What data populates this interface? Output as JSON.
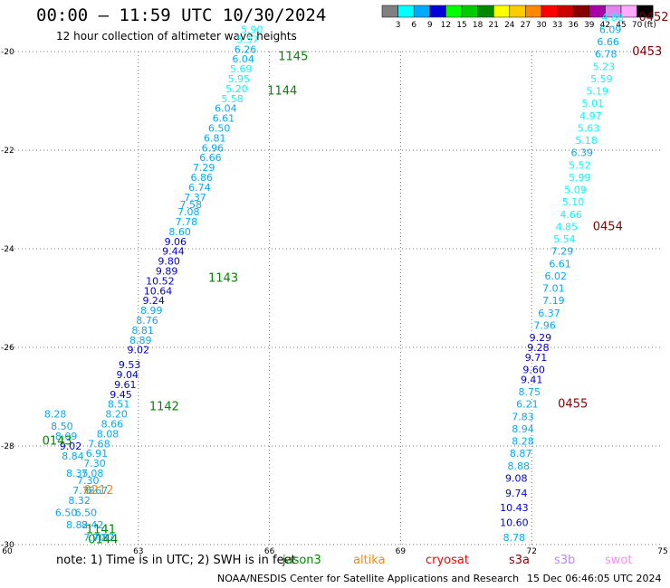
{
  "header": {
    "title": "00:00 — 11:59 UTC 10/30/2024",
    "subtitle": "12 hour collection of altimeter wave heights"
  },
  "legend": {
    "unit": "(ft)",
    "bins": [
      {
        "label": "3",
        "color": "#808080"
      },
      {
        "label": "6",
        "color": "#00ffff"
      },
      {
        "label": "9",
        "color": "#00aaff"
      },
      {
        "label": "12",
        "color": "#0000dd"
      },
      {
        "label": "15",
        "color": "#00ff00"
      },
      {
        "label": "18",
        "color": "#00cc00"
      },
      {
        "label": "21",
        "color": "#008800"
      },
      {
        "label": "24",
        "color": "#ffff00"
      },
      {
        "label": "27",
        "color": "#ffcc00"
      },
      {
        "label": "30",
        "color": "#ff8800"
      },
      {
        "label": "33",
        "color": "#ff0000"
      },
      {
        "label": "36",
        "color": "#cc0000"
      },
      {
        "label": "39",
        "color": "#880000"
      },
      {
        "label": "42",
        "color": "#aa00aa"
      },
      {
        "label": "45",
        "color": "#dd88ee"
      },
      {
        "label": "70",
        "color": "#ffaaff"
      },
      {
        "label": "",
        "color": "#000000"
      }
    ]
  },
  "footer": {
    "note": "note: 1) Time is in UTC; 2) SWH is in feet",
    "satellites": [
      {
        "name": "jason3",
        "color": "#008800"
      },
      {
        "name": "altika",
        "color": "#ff8800"
      },
      {
        "name": "cryosat",
        "color": "#ff0000"
      },
      {
        "name": "s3a",
        "color": "#880000"
      },
      {
        "name": "s3b",
        "color": "#bb88ee"
      },
      {
        "name": "swot",
        "color": "#ff88ff"
      }
    ],
    "credit": "NOAA/NESDIS Center for Satellite Applications and Research",
    "generated": "15 Dec 06:46:05 UTC 2024"
  },
  "chart_data": {
    "type": "scatter",
    "xlim": [
      60,
      75
    ],
    "ylim": [
      -30,
      -20
    ],
    "x_ticks": [
      "60",
      "63",
      "66",
      "69",
      "72",
      "75"
    ],
    "y_ticks": [
      "-20",
      "-22",
      "-24",
      "-26",
      "-28",
      "-30"
    ],
    "grid": true,
    "tracks": [
      {
        "satellite": "jason3",
        "points": [
          {
            "x": 62.0,
            "y": -29.85,
            "v": "7.70"
          },
          {
            "x": 62.2,
            "y": -29.85,
            "v": "7.87"
          },
          {
            "x": 61.95,
            "y": -29.6,
            "v": "8.42"
          },
          {
            "x": 61.6,
            "y": -29.6,
            "v": "8.82"
          },
          {
            "x": 61.35,
            "y": -29.35,
            "v": "6.50"
          },
          {
            "x": 61.8,
            "y": -29.35,
            "v": "6.50"
          },
          {
            "x": 61.65,
            "y": -29.1,
            "v": "8.32"
          },
          {
            "x": 61.75,
            "y": -28.9,
            "v": "7.78"
          },
          {
            "x": 62.05,
            "y": -28.9,
            "v": "6.67"
          },
          {
            "x": 61.85,
            "y": -28.7,
            "v": "7.30"
          },
          {
            "x": 61.6,
            "y": -28.55,
            "v": "8.35"
          },
          {
            "x": 61.95,
            "y": -28.55,
            "v": "7.08"
          },
          {
            "x": 62.0,
            "y": -28.35,
            "v": "7.30"
          },
          {
            "x": 61.5,
            "y": -28.2,
            "v": "8.84"
          },
          {
            "x": 62.05,
            "y": -28.15,
            "v": "6.91"
          },
          {
            "x": 61.45,
            "y": -28.0,
            "v": "9.02"
          },
          {
            "x": 62.1,
            "y": -27.95,
            "v": "7.68"
          },
          {
            "x": 61.35,
            "y": -27.8,
            "v": "8.09"
          },
          {
            "x": 62.3,
            "y": -27.75,
            "v": "8.08"
          },
          {
            "x": 61.25,
            "y": -27.6,
            "v": "8.50"
          },
          {
            "x": 62.4,
            "y": -27.55,
            "v": "8.66"
          },
          {
            "x": 61.1,
            "y": -27.35,
            "v": "8.28"
          },
          {
            "x": 62.5,
            "y": -27.35,
            "v": "8.20"
          },
          {
            "x": 62.55,
            "y": -27.15,
            "v": "8.51"
          },
          {
            "x": 62.6,
            "y": -26.95,
            "v": "9.45"
          },
          {
            "x": 62.7,
            "y": -26.75,
            "v": "9.61"
          },
          {
            "x": 62.75,
            "y": -26.55,
            "v": "9.04"
          },
          {
            "x": 62.8,
            "y": -26.35,
            "v": "9.53"
          },
          {
            "x": 63.0,
            "y": -26.05,
            "v": "9.02"
          },
          {
            "x": 63.05,
            "y": -25.85,
            "v": "8.89"
          },
          {
            "x": 63.1,
            "y": -25.65,
            "v": "8.81"
          },
          {
            "x": 63.2,
            "y": -25.45,
            "v": "8.76"
          },
          {
            "x": 63.3,
            "y": -25.25,
            "v": "8.99"
          },
          {
            "x": 63.35,
            "y": -25.05,
            "v": "9.24"
          },
          {
            "x": 63.45,
            "y": -24.85,
            "v": "10.64"
          },
          {
            "x": 63.5,
            "y": -24.65,
            "v": "10.52"
          },
          {
            "x": 63.65,
            "y": -24.45,
            "v": "9.89"
          },
          {
            "x": 63.7,
            "y": -24.25,
            "v": "9.80"
          },
          {
            "x": 63.8,
            "y": -24.05,
            "v": "9.44"
          },
          {
            "x": 63.85,
            "y": -23.85,
            "v": "9.06"
          },
          {
            "x": 63.95,
            "y": -23.65,
            "v": "8.60"
          },
          {
            "x": 64.1,
            "y": -23.45,
            "v": "7.78"
          },
          {
            "x": 64.15,
            "y": -23.25,
            "v": "7.08"
          },
          {
            "x": 64.2,
            "y": -23.1,
            "v": "7.58"
          },
          {
            "x": 64.3,
            "y": -22.95,
            "v": "7.37"
          },
          {
            "x": 64.4,
            "y": -22.75,
            "v": "6.74"
          },
          {
            "x": 64.45,
            "y": -22.55,
            "v": "6.86"
          },
          {
            "x": 64.5,
            "y": -22.35,
            "v": "7.29"
          },
          {
            "x": 64.65,
            "y": -22.15,
            "v": "6.66"
          },
          {
            "x": 64.7,
            "y": -21.95,
            "v": "6.96"
          },
          {
            "x": 64.75,
            "y": -21.75,
            "v": "6.81"
          },
          {
            "x": 64.85,
            "y": -21.55,
            "v": "6.50"
          },
          {
            "x": 64.95,
            "y": -21.35,
            "v": "6.61"
          },
          {
            "x": 65.0,
            "y": -21.15,
            "v": "6.04"
          },
          {
            "x": 65.15,
            "y": -20.95,
            "v": "5.58"
          },
          {
            "x": 65.25,
            "y": -20.75,
            "v": "5.20"
          },
          {
            "x": 65.3,
            "y": -20.55,
            "v": "5.95"
          },
          {
            "x": 65.35,
            "y": -20.35,
            "v": "5.69"
          },
          {
            "x": 65.4,
            "y": -20.15,
            "v": "6.04"
          },
          {
            "x": 65.45,
            "y": -19.95,
            "v": "6.26"
          },
          {
            "x": 65.5,
            "y": -19.75,
            "v": "5.57"
          },
          {
            "x": 65.6,
            "y": -19.55,
            "v": "5.90"
          }
        ],
        "time_labels": [
          {
            "x": 66.2,
            "y": -20.1,
            "label": "1145"
          },
          {
            "x": 65.95,
            "y": -20.8,
            "label": "1144"
          },
          {
            "x": 64.6,
            "y": -24.6,
            "label": "1143"
          },
          {
            "x": 63.25,
            "y": -27.2,
            "label": "1142"
          },
          {
            "x": 61.8,
            "y": -29.7,
            "label": "1141"
          },
          {
            "x": 61.85,
            "y": -29.9,
            "label": "0144"
          },
          {
            "x": 60.8,
            "y": -27.9,
            "label": "0143"
          }
        ]
      },
      {
        "satellite": "altika",
        "points": [],
        "time_labels": [
          {
            "x": 61.75,
            "y": -28.9,
            "label": "0212"
          }
        ]
      },
      {
        "satellite": "s3a",
        "points": [
          {
            "x": 71.6,
            "y": -29.85,
            "v": "8.78"
          },
          {
            "x": 71.6,
            "y": -29.55,
            "v": "10.60"
          },
          {
            "x": 71.6,
            "y": -29.25,
            "v": "10.43"
          },
          {
            "x": 71.65,
            "y": -28.95,
            "v": "9.74"
          },
          {
            "x": 71.65,
            "y": -28.65,
            "v": "9.08"
          },
          {
            "x": 71.7,
            "y": -28.4,
            "v": "8.88"
          },
          {
            "x": 71.75,
            "y": -28.15,
            "v": "8.87"
          },
          {
            "x": 71.8,
            "y": -27.9,
            "v": "8.28"
          },
          {
            "x": 71.8,
            "y": -27.65,
            "v": "8.94"
          },
          {
            "x": 71.8,
            "y": -27.4,
            "v": "7.83"
          },
          {
            "x": 71.9,
            "y": -27.15,
            "v": "6.21"
          },
          {
            "x": 71.95,
            "y": -26.9,
            "v": "8.75"
          },
          {
            "x": 72.0,
            "y": -26.65,
            "v": "9.41"
          },
          {
            "x": 72.05,
            "y": -26.45,
            "v": "9.60"
          },
          {
            "x": 72.1,
            "y": -26.2,
            "v": "9.71"
          },
          {
            "x": 72.15,
            "y": -26.0,
            "v": "9.28"
          },
          {
            "x": 72.2,
            "y": -25.8,
            "v": "9.29"
          },
          {
            "x": 72.3,
            "y": -25.55,
            "v": "7.96"
          },
          {
            "x": 72.4,
            "y": -25.3,
            "v": "6.37"
          },
          {
            "x": 72.5,
            "y": -25.05,
            "v": "7.19"
          },
          {
            "x": 72.5,
            "y": -24.8,
            "v": "7.01"
          },
          {
            "x": 72.55,
            "y": -24.55,
            "v": "6.02"
          },
          {
            "x": 72.65,
            "y": -24.3,
            "v": "6.61"
          },
          {
            "x": 72.7,
            "y": -24.05,
            "v": "7.29"
          },
          {
            "x": 72.75,
            "y": -23.8,
            "v": "5.54"
          },
          {
            "x": 72.8,
            "y": -23.55,
            "v": "4.85"
          },
          {
            "x": 72.9,
            "y": -23.3,
            "v": "4.66"
          },
          {
            "x": 72.95,
            "y": -23.05,
            "v": "5.10"
          },
          {
            "x": 73.0,
            "y": -22.8,
            "v": "5.09"
          },
          {
            "x": 73.1,
            "y": -22.55,
            "v": "5.99"
          },
          {
            "x": 73.1,
            "y": -22.3,
            "v": "5.52"
          },
          {
            "x": 73.15,
            "y": -22.05,
            "v": "6.39"
          },
          {
            "x": 73.25,
            "y": -21.8,
            "v": "5.18"
          },
          {
            "x": 73.3,
            "y": -21.55,
            "v": "5.63"
          },
          {
            "x": 73.35,
            "y": -21.3,
            "v": "4.97"
          },
          {
            "x": 73.4,
            "y": -21.05,
            "v": "5.01"
          },
          {
            "x": 73.5,
            "y": -20.8,
            "v": "5.19"
          },
          {
            "x": 73.6,
            "y": -20.55,
            "v": "5.59"
          },
          {
            "x": 73.65,
            "y": -20.3,
            "v": "5.23"
          },
          {
            "x": 73.7,
            "y": -20.05,
            "v": "6.78"
          },
          {
            "x": 73.75,
            "y": -19.8,
            "v": "6.66"
          },
          {
            "x": 73.8,
            "y": -19.55,
            "v": "6.09"
          },
          {
            "x": 73.85,
            "y": -19.3,
            "v": "4.86"
          }
        ],
        "time_labels": [
          {
            "x": 74.45,
            "y": -19.3,
            "label": "0452"
          },
          {
            "x": 74.3,
            "y": -20.0,
            "label": "0453"
          },
          {
            "x": 73.4,
            "y": -23.55,
            "label": "0454"
          },
          {
            "x": 72.6,
            "y": -27.15,
            "label": "0455"
          }
        ]
      }
    ]
  }
}
